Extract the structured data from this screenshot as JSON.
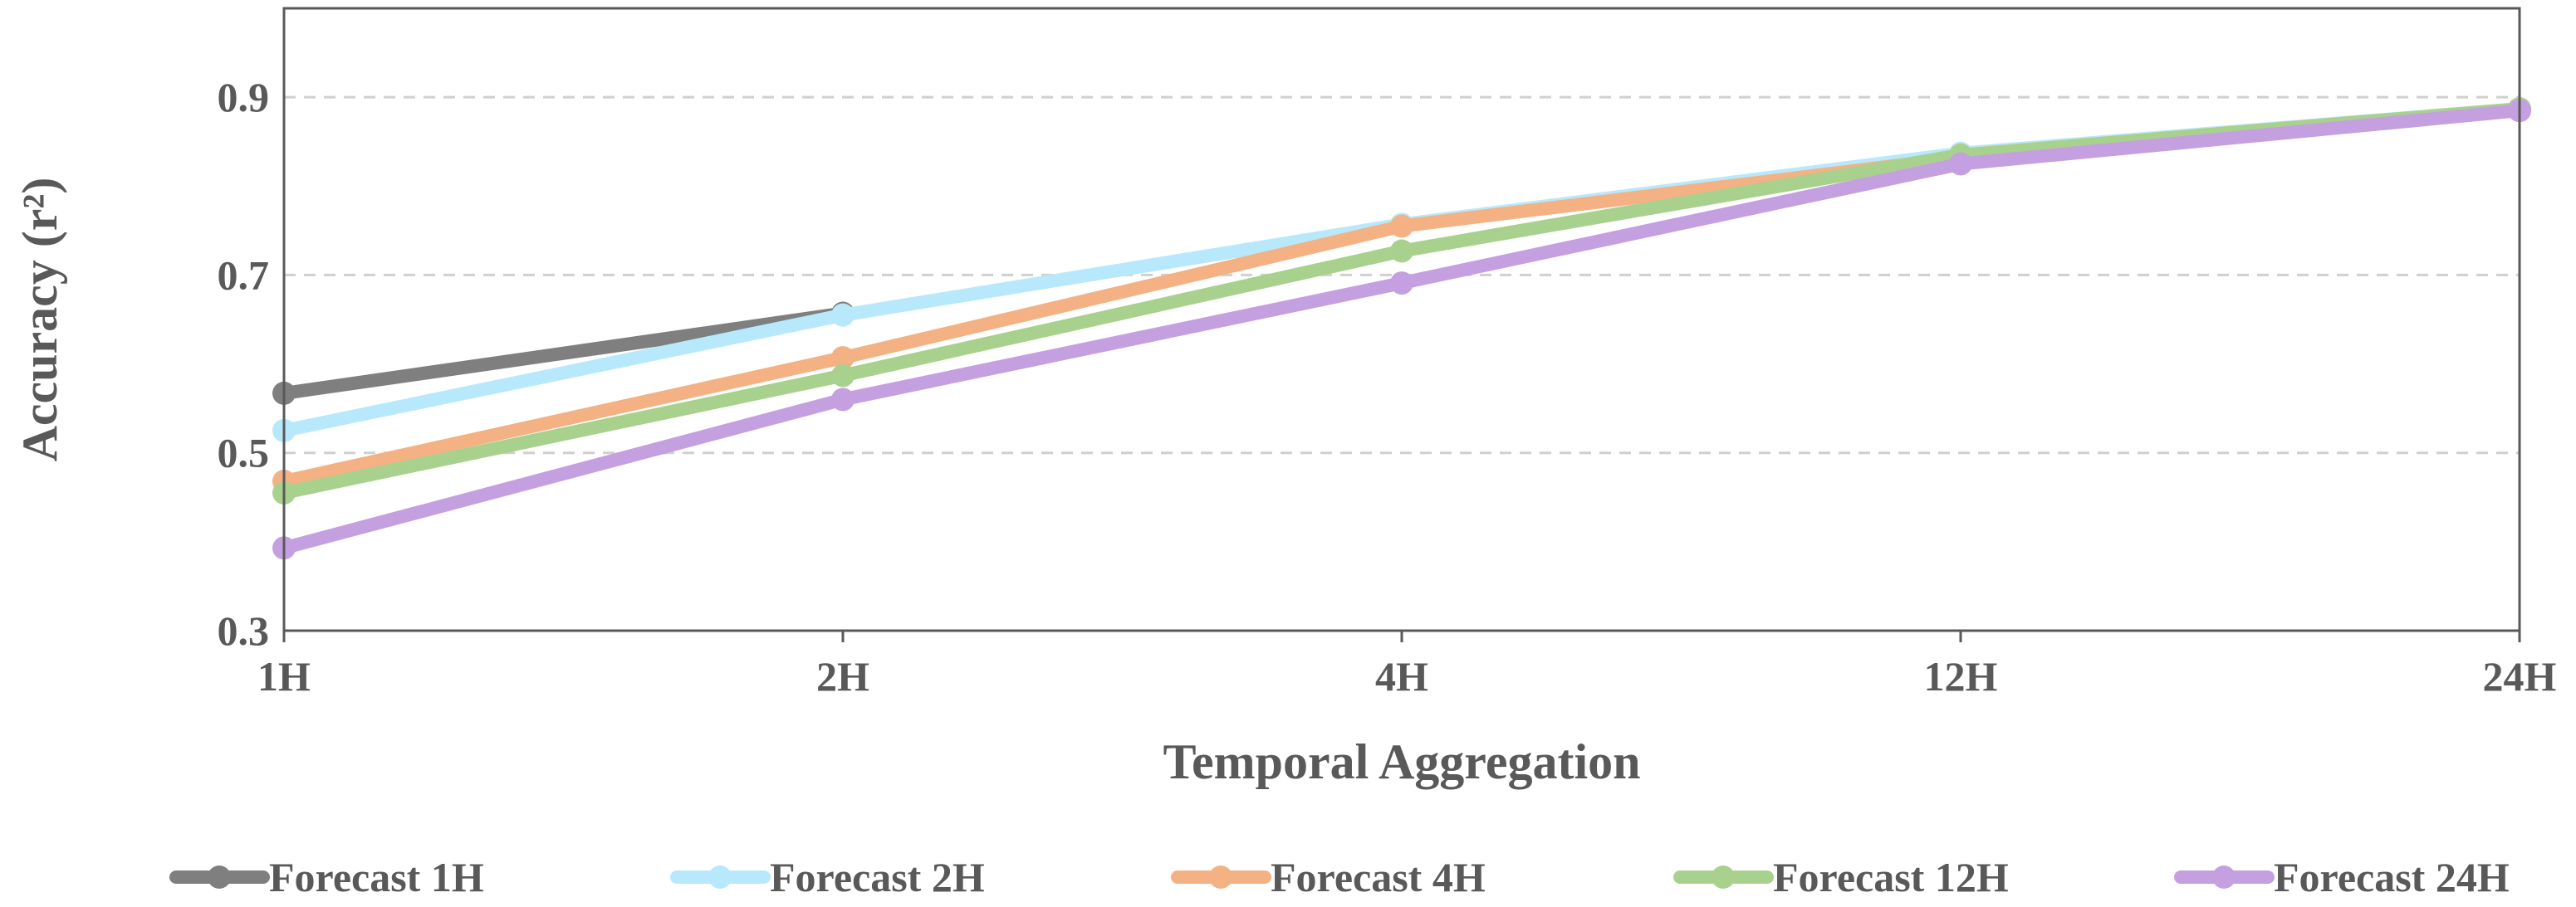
{
  "chart_data": {
    "type": "line",
    "title": "",
    "xlabel": "Temporal Aggregation",
    "ylabel": "Accuracy (r²)",
    "categories": [
      "1H",
      "2H",
      "4H",
      "12H",
      "24H"
    ],
    "ylim": [
      0.3,
      1.0
    ],
    "yticks": [
      "0.3",
      "0.5",
      "0.7",
      "0.9"
    ],
    "grid": "horizontal dashed",
    "legend_position": "bottom",
    "series": [
      {
        "name": "Forecast 1H",
        "color": "#7f7f7f",
        "values": [
          0.567,
          0.657,
          null,
          null,
          null
        ]
      },
      {
        "name": "Forecast 2H",
        "color": "#b8e8fb",
        "values": [
          0.525,
          0.655,
          0.757,
          0.837,
          0.887
        ]
      },
      {
        "name": "Forecast 4H",
        "color": "#f4b183",
        "values": [
          0.468,
          0.607,
          0.755,
          0.832,
          0.885
        ]
      },
      {
        "name": "Forecast 12H",
        "color": "#a9d18e",
        "values": [
          0.455,
          0.587,
          0.727,
          0.835,
          0.887
        ]
      },
      {
        "name": "Forecast 24H",
        "color": "#c4a0e0",
        "values": [
          0.393,
          0.56,
          0.691,
          0.825,
          0.885
        ]
      }
    ]
  }
}
